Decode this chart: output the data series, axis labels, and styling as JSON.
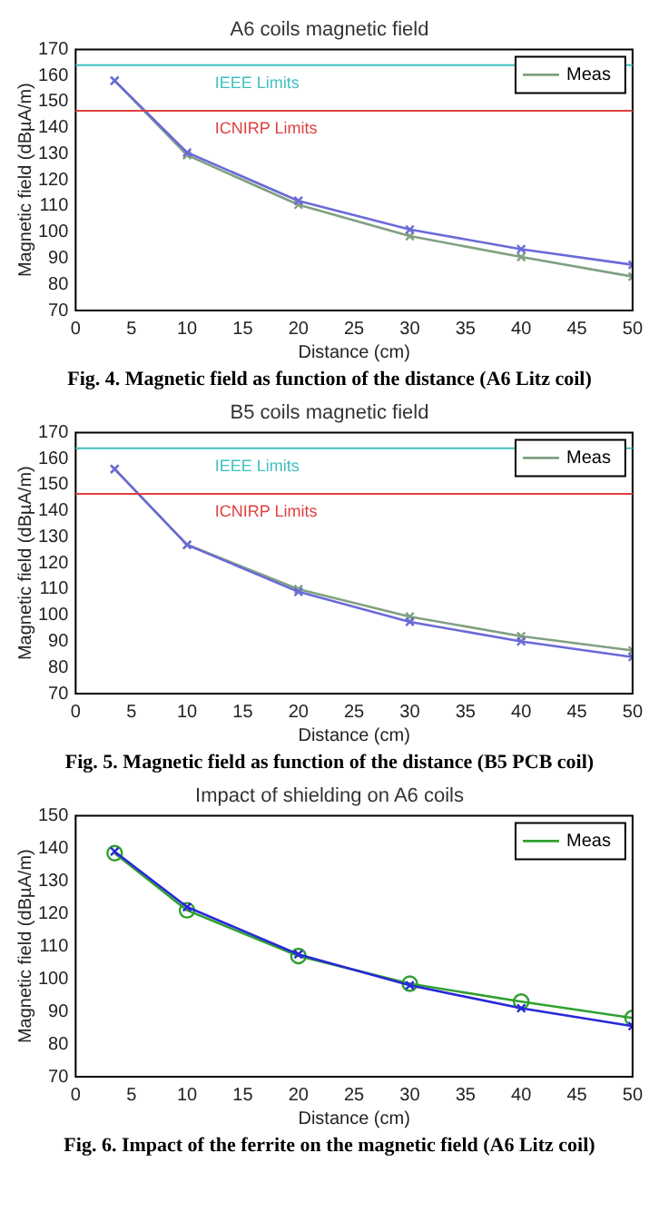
{
  "chart_data": [
    {
      "type": "line",
      "title": "A6 coils magnetic field",
      "xlabel": "Distance (cm)",
      "ylabel": "Magnetic field (dBµA/m)",
      "xlim": [
        0,
        50
      ],
      "xticks": [
        0,
        5,
        10,
        15,
        20,
        25,
        30,
        35,
        40,
        45,
        50
      ],
      "ylim": [
        70,
        170
      ],
      "yticks": [
        70,
        80,
        90,
        100,
        110,
        120,
        130,
        140,
        150,
        160,
        170
      ],
      "legend": "top right",
      "marker": "cross",
      "series": [
        {
          "color": "#6a6ad8",
          "x": [
            3.5,
            10,
            20,
            30,
            40,
            50
          ],
          "values": [
            158,
            130.5,
            112,
            101,
            93.5,
            87.5
          ]
        },
        {
          "name": "Meas",
          "color": "#80a080",
          "x": [
            3.5,
            10,
            20,
            30,
            40,
            50
          ],
          "values": [
            158,
            129.5,
            110.5,
            98.5,
            90.5,
            83
          ]
        }
      ],
      "ref_lines": [
        {
          "axis": "y",
          "value": 164,
          "label": "IEEE Limits",
          "color": "#40c0c0"
        },
        {
          "axis": "y",
          "value": 146.5,
          "label": "ICNIRP Limits",
          "color": "#e04040"
        }
      ],
      "annotations": [
        "Fig.  4. Magnetic field as function of the distance (A6 Litz coil)"
      ]
    },
    {
      "type": "line",
      "title": "B5 coils magnetic field",
      "xlabel": "Distance (cm)",
      "ylabel": "Magnetic field (dBµA/m)",
      "xlim": [
        0,
        50
      ],
      "xticks": [
        0,
        5,
        10,
        15,
        20,
        25,
        30,
        35,
        40,
        45,
        50
      ],
      "ylim": [
        70,
        170
      ],
      "yticks": [
        70,
        80,
        90,
        100,
        110,
        120,
        130,
        140,
        150,
        160,
        170
      ],
      "legend": "top right",
      "marker": "cross",
      "series": [
        {
          "color": "#6a6ad8",
          "x": [
            3.5,
            10,
            20,
            30,
            40,
            50
          ],
          "values": [
            156,
            127,
            109,
            97.5,
            90,
            84
          ]
        },
        {
          "name": "Meas",
          "color": "#80a080",
          "x": [
            3.5,
            10,
            20,
            30,
            40,
            50
          ],
          "values": [
            156,
            127,
            110,
            99.5,
            92,
            86.5
          ]
        }
      ],
      "ref_lines": [
        {
          "axis": "y",
          "value": 164,
          "label": "IEEE Limits",
          "color": "#40c0c0"
        },
        {
          "axis": "y",
          "value": 146.5,
          "label": "ICNIRP Limits",
          "color": "#e04040"
        }
      ],
      "annotations": [
        "Fig.  5. Magnetic field as function of the distance (B5 PCB coil)"
      ]
    },
    {
      "type": "line",
      "title": "Impact of shielding on A6 coils",
      "xlabel": "Distance (cm)",
      "ylabel": "Magnetic field (dBµA/m)",
      "xlim": [
        0,
        50
      ],
      "xticks": [
        0,
        5,
        10,
        15,
        20,
        25,
        30,
        35,
        40,
        45,
        50
      ],
      "ylim": [
        70,
        150
      ],
      "yticks": [
        70,
        80,
        90,
        100,
        110,
        120,
        130,
        140,
        150
      ],
      "legend": "top right",
      "series": [
        {
          "color": "#2828d8",
          "marker": "cross",
          "x": [
            3.5,
            10,
            20,
            30,
            40,
            50
          ],
          "values": [
            139,
            122,
            107.5,
            98,
            91,
            85.5
          ]
        },
        {
          "name": "Meas",
          "color": "#30a030",
          "marker": "circle",
          "x": [
            3.5,
            10,
            20,
            30,
            40,
            50
          ],
          "values": [
            138.5,
            121,
            107,
            98.5,
            93,
            88
          ]
        }
      ],
      "annotations": [
        "Fig.  6. Impact of the ferrite on the magnetic field (A6 Litz coil)"
      ]
    }
  ]
}
